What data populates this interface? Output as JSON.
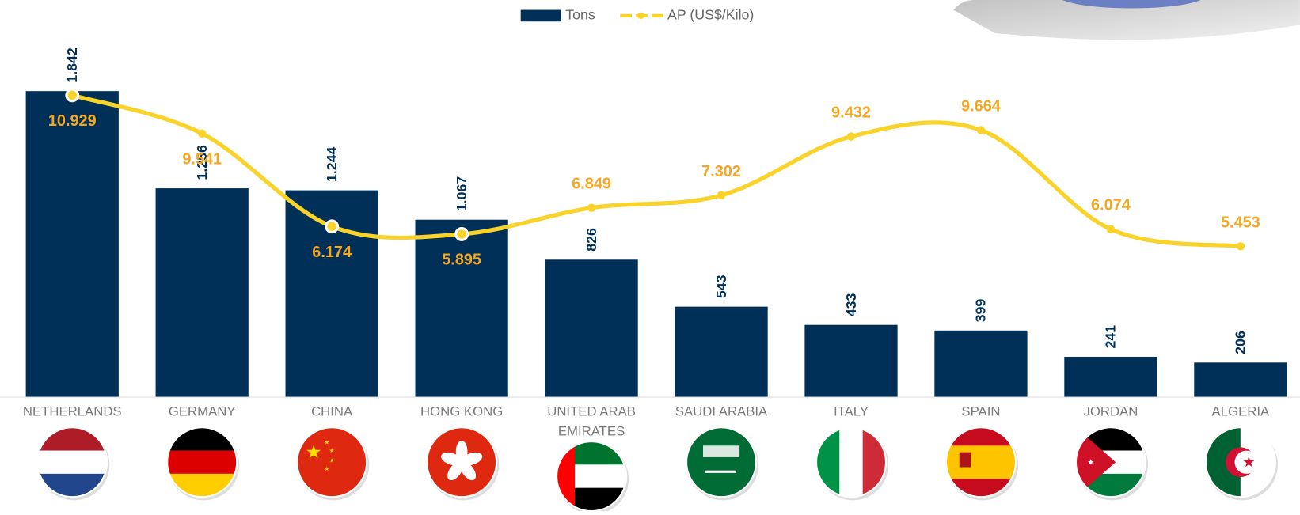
{
  "chart_data": {
    "type": "bar",
    "categories": [
      "NETHERLANDS",
      "GERMANY",
      "CHINA",
      "HONG KONG",
      "UNITED ARAB EMIRATES",
      "SAUDI ARABIA",
      "ITALY",
      "SPAIN",
      "JORDAN",
      "ALGERIA"
    ],
    "series": [
      {
        "name": "Tons",
        "color": "#003057",
        "values": [
          1842,
          1256,
          1244,
          1067,
          826,
          543,
          433,
          399,
          241,
          206
        ],
        "value_labels": [
          "1.842",
          "1.256",
          "1.244",
          "1.067",
          "826",
          "543",
          "433",
          "399",
          "241",
          "206"
        ]
      },
      {
        "name": "AP (US$/Kilo)",
        "color": "#f9d32a",
        "label_color": "#f5a623",
        "axis": "y2",
        "type": "line",
        "values": [
          10.929,
          9.541,
          6.174,
          5.895,
          6.849,
          7.302,
          9.432,
          9.664,
          6.074,
          5.453
        ]
      }
    ],
    "legend": "top"
  }
}
